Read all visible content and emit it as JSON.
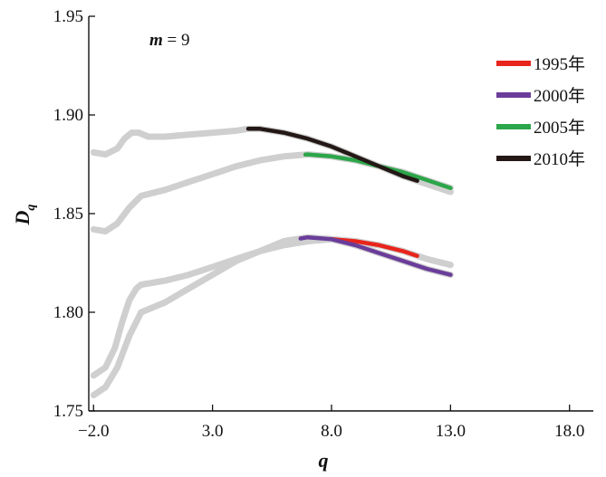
{
  "chart_data": {
    "type": "line",
    "title": "",
    "xlabel": "q",
    "ylabel": "D",
    "ylabel_sub": "q",
    "annotation": {
      "var": "m",
      "rest": " = 9"
    },
    "xlim": [
      -2.2,
      19.0
    ],
    "ylim": [
      1.75,
      1.95
    ],
    "x_ticks": [
      {
        "value": -2,
        "label": "−2.0"
      },
      {
        "value": 3,
        "label": "3.0"
      },
      {
        "value": 8,
        "label": "8.0"
      },
      {
        "value": 13,
        "label": "13.0"
      },
      {
        "value": 18,
        "label": "18.0"
      }
    ],
    "y_ticks": [
      {
        "value": 1.75,
        "label": "1.75"
      },
      {
        "value": 1.8,
        "label": "1.80"
      },
      {
        "value": 1.85,
        "label": "1.85"
      },
      {
        "value": 1.9,
        "label": "1.90"
      },
      {
        "value": 1.95,
        "label": "1.95"
      }
    ],
    "grid": false,
    "legend_position": "top-right",
    "series": [
      {
        "name": "1995年",
        "color": "#e8251c",
        "x": [
          -2,
          -1.5,
          -1.1,
          -0.8,
          -0.5,
          -0.2,
          0,
          1,
          2,
          3,
          4,
          5,
          6,
          7,
          8,
          9,
          10,
          11,
          12,
          13
        ],
        "y": [
          1.768,
          1.772,
          1.782,
          1.795,
          1.806,
          1.812,
          1.814,
          1.816,
          1.819,
          1.823,
          1.827,
          1.831,
          1.834,
          1.836,
          1.837,
          1.836,
          1.834,
          1.831,
          1.827,
          1.824
        ],
        "highlight": [
          8.0,
          11.6
        ]
      },
      {
        "name": "2000年",
        "color": "#6a3d9a",
        "x": [
          -2,
          -1.5,
          -1,
          -0.5,
          0,
          1,
          2,
          3,
          4,
          5,
          6,
          7,
          8,
          9,
          10,
          11,
          12,
          13
        ],
        "y": [
          1.758,
          1.762,
          1.772,
          1.788,
          1.8,
          1.805,
          1.812,
          1.819,
          1.826,
          1.831,
          1.836,
          1.838,
          1.837,
          1.834,
          1.83,
          1.826,
          1.822,
          1.819
        ],
        "highlight": [
          6.7,
          13.0
        ]
      },
      {
        "name": "2005年",
        "color": "#2ca64a",
        "x": [
          -2,
          -1.5,
          -1,
          -0.5,
          0,
          1,
          2,
          3,
          4,
          5,
          6,
          7,
          8,
          9,
          10,
          11,
          12,
          13
        ],
        "y": [
          1.842,
          1.841,
          1.845,
          1.853,
          1.859,
          1.862,
          1.866,
          1.87,
          1.874,
          1.877,
          1.879,
          1.88,
          1.879,
          1.877,
          1.874,
          1.871,
          1.867,
          1.863
        ],
        "highlight": [
          6.9,
          13.0
        ]
      },
      {
        "name": "2010年",
        "color": "#231815",
        "x": [
          -2,
          -1.5,
          -1,
          -0.7,
          -0.4,
          -0.1,
          0.3,
          1,
          2,
          3,
          4,
          4.5,
          5,
          6,
          7,
          8,
          9,
          10,
          11,
          12,
          13
        ],
        "y": [
          1.881,
          1.88,
          1.883,
          1.888,
          1.891,
          1.891,
          1.889,
          1.889,
          1.89,
          1.891,
          1.892,
          1.893,
          1.893,
          1.891,
          1.888,
          1.884,
          1.879,
          1.874,
          1.869,
          1.865,
          1.861
        ],
        "highlight": [
          4.5,
          11.6
        ]
      }
    ]
  }
}
